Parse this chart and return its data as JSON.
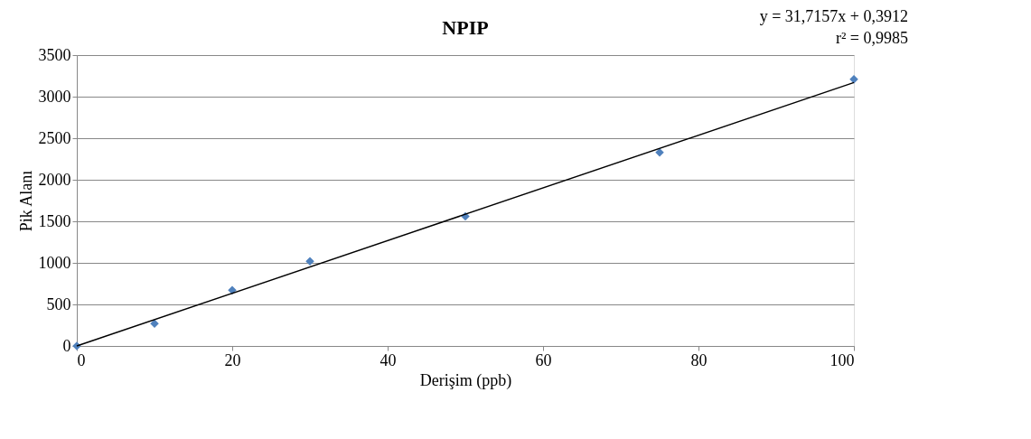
{
  "chart_data": {
    "type": "scatter",
    "title": "NPIP",
    "xlabel": "Derişim (ppb)",
    "ylabel": "Pik Alanı",
    "x": [
      0,
      10,
      20,
      30,
      50,
      75,
      100
    ],
    "series": [
      {
        "color": "#4f81bd",
        "marker": "diamond",
        "values": [
          0,
          270,
          670,
          1020,
          1560,
          2330,
          3210
        ]
      },
      {
        "type": "line",
        "color": "#000000",
        "marker": "none",
        "line_style": "solid",
        "x": [
          0,
          100
        ],
        "values": [
          0,
          3170
        ]
      }
    ],
    "xlim": [
      0,
      100
    ],
    "xticks": [
      0,
      20,
      40,
      60,
      80,
      100
    ],
    "ylim": [
      0,
      3500
    ],
    "yticks": [
      0,
      500,
      1000,
      1500,
      2000,
      2500,
      3000,
      3500
    ],
    "grid": "y",
    "legend": false,
    "annotations": [
      "y = 31,7157x + 0,3912",
      "r² = 0,9985"
    ]
  }
}
